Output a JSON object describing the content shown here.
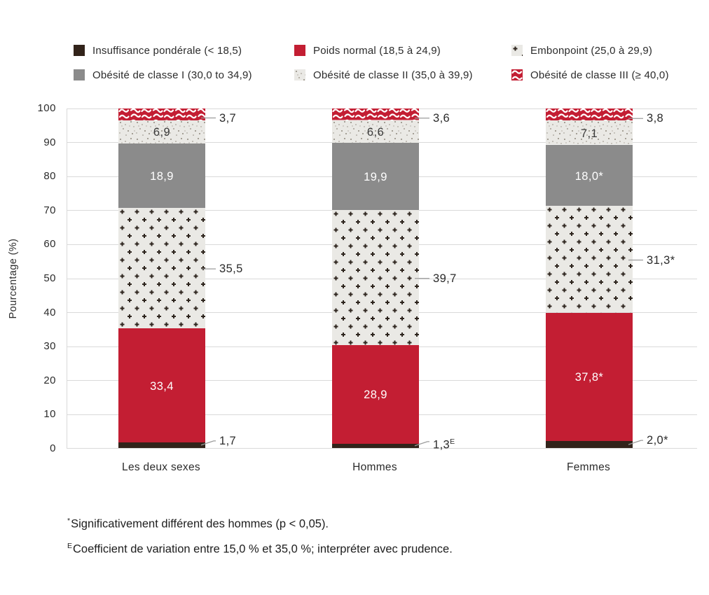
{
  "colors": {
    "red": "#c31e33",
    "dark": "#32231a",
    "gray": "#8b8b8b",
    "pattern_bg": "#eae9e5",
    "plus_mark": "#2e251e",
    "speckle_dot": "#8f887d",
    "gridline": "#d9d9d9",
    "callout": "#9b9b9b",
    "label_on_dark": "#ffffff",
    "label_on_light": "#3a3a3a"
  },
  "footnotes": [
    {
      "marker": "*",
      "text": "Significativement différent des hommes (p < 0,05)."
    },
    {
      "marker": "E",
      "text": "Coefficient de variation entre 15,0 % et 35,0 %; interpréter avec prudence."
    }
  ],
  "chart_data": {
    "type": "bar",
    "subtype": "stacked-vertical",
    "ylabel": "Pourcentage (%)",
    "ylim": [
      0,
      100
    ],
    "yticks": [
      0,
      10,
      20,
      30,
      40,
      50,
      60,
      70,
      80,
      90,
      100
    ],
    "grid": true,
    "legend_position": "top",
    "categories": [
      "Les deux sexes",
      "Hommes",
      "Femmes"
    ],
    "series": [
      {
        "name": "Insuffisance pondérale (< 18,5)",
        "style": "solid-dark",
        "values": [
          1.7,
          1.3,
          2.0
        ],
        "labels": [
          {
            "text": "1,7",
            "sup": ""
          },
          {
            "text": "1,3",
            "sup": "E"
          },
          {
            "text": "2,0*",
            "sup": ""
          }
        ],
        "label_placement": "outside"
      },
      {
        "name": "Poids normal (18,5 à 24,9)",
        "style": "solid-red",
        "values": [
          33.4,
          28.9,
          37.8
        ],
        "labels": [
          {
            "text": "33,4",
            "sup": ""
          },
          {
            "text": "28,9",
            "sup": ""
          },
          {
            "text": "37,8*",
            "sup": ""
          }
        ],
        "label_placement": "inside-light"
      },
      {
        "name": "Embonpoint (25,0 à 29,9)",
        "style": "pattern-plus",
        "values": [
          35.5,
          39.7,
          31.3
        ],
        "labels": [
          {
            "text": "35,5",
            "sup": ""
          },
          {
            "text": "39,7",
            "sup": ""
          },
          {
            "text": "31,3*",
            "sup": ""
          }
        ],
        "label_placement": "outside"
      },
      {
        "name": "Obésité de classe I (30,0 to 34,9)",
        "style": "solid-gray",
        "values": [
          18.9,
          19.9,
          18.0
        ],
        "labels": [
          {
            "text": "18,9",
            "sup": ""
          },
          {
            "text": "19,9",
            "sup": ""
          },
          {
            "text": "18,0*",
            "sup": ""
          }
        ],
        "label_placement": "inside-light"
      },
      {
        "name": "Obésité de classe II (35,0 à 39,9)",
        "style": "pattern-speckle",
        "values": [
          6.9,
          6.6,
          7.1
        ],
        "labels": [
          {
            "text": "6,9",
            "sup": ""
          },
          {
            "text": "6,6",
            "sup": ""
          },
          {
            "text": "7,1",
            "sup": ""
          }
        ],
        "label_placement": "inside-dark"
      },
      {
        "name": "Obésité de classe III (≥ 40,0)",
        "style": "pattern-vermiculate",
        "values": [
          3.7,
          3.6,
          3.8
        ],
        "labels": [
          {
            "text": "3,7",
            "sup": ""
          },
          {
            "text": "3,6",
            "sup": ""
          },
          {
            "text": "3,8",
            "sup": ""
          }
        ],
        "label_placement": "outside"
      }
    ]
  }
}
